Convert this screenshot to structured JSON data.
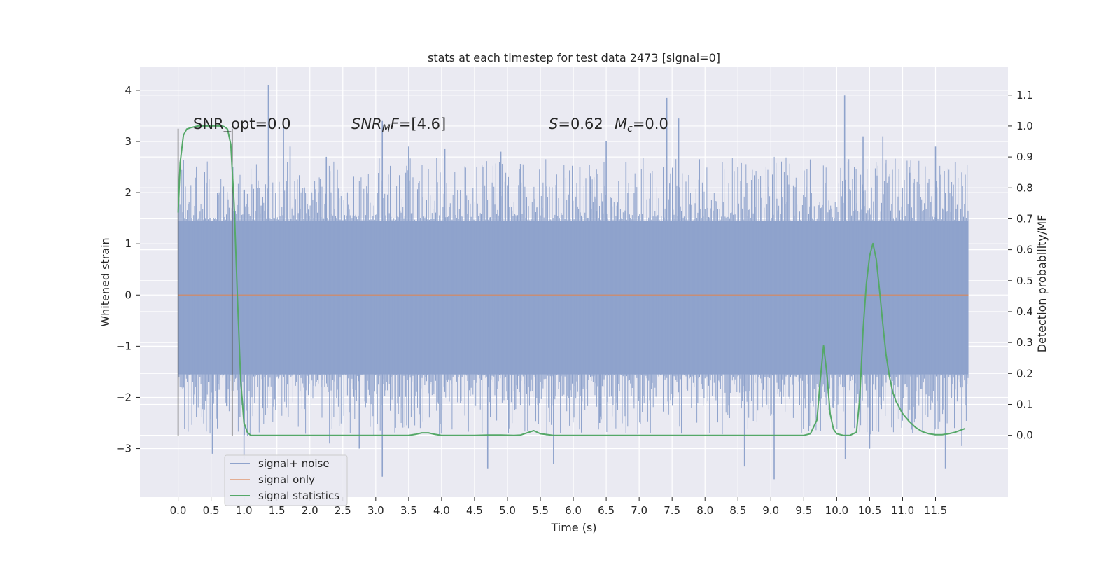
{
  "chart_data": {
    "type": "line",
    "title": "stats at each timestep for test data 2473 [signal=0]",
    "xlabel": "Time (s)",
    "ylabel": "Whitened strain",
    "y2label": "Detection probability/MF",
    "xlim": [
      -0.58,
      12.6
    ],
    "ylim": [
      -3.95,
      4.45
    ],
    "y2lim": [
      -0.2,
      1.19
    ],
    "x_ticks": [
      0.0,
      0.5,
      1.0,
      1.5,
      2.0,
      2.5,
      3.0,
      3.5,
      4.0,
      4.5,
      5.0,
      5.5,
      6.0,
      6.5,
      7.0,
      7.5,
      8.0,
      8.5,
      9.0,
      9.5,
      10.0,
      10.5,
      11.0,
      11.5
    ],
    "x_tick_labels": [
      "0.0",
      "0.5",
      "1.0",
      "1.5",
      "2.0",
      "2.5",
      "3.0",
      "3.5",
      "4.0",
      "4.5",
      "5.0",
      "5.5",
      "6.0",
      "6.5",
      "7.0",
      "7.5",
      "8.0",
      "8.5",
      "9.0",
      "9.5",
      "10.0",
      "10.5",
      "11.0",
      "11.5"
    ],
    "y_ticks": [
      -3,
      -2,
      -1,
      0,
      1,
      2,
      3,
      4
    ],
    "y_tick_labels": [
      "−3",
      "−2",
      "−1",
      "0",
      "1",
      "2",
      "3",
      "4"
    ],
    "y2_ticks": [
      0.0,
      0.1,
      0.2,
      0.3,
      0.4,
      0.5,
      0.6,
      0.7,
      0.8,
      0.9,
      1.0,
      1.1
    ],
    "y2_tick_labels": [
      "0.0",
      "0.1",
      "0.2",
      "0.3",
      "0.4",
      "0.5",
      "0.6",
      "0.7",
      "0.8",
      "0.9",
      "1.0",
      "1.1"
    ],
    "grid": true,
    "legend_position": "lower-left",
    "annotations": {
      "snr_opt": "SNR_opt=0.0",
      "snr_mf_main": "SNR",
      "snr_mf_sub": "M",
      "snr_mf_rest": "F=[4.6]",
      "s_main": "S",
      "s_rest": "=0.62",
      "mc_main": "M",
      "mc_sub": "c",
      "mc_rest": "=0.0"
    },
    "series": [
      {
        "name": "signal+ noise",
        "color": "#8fa3cc",
        "axis": "left",
        "x_range": [
          0.0,
          12.0
        ],
        "core_band": [
          -1.55,
          1.45
        ],
        "peaks_up": [
          [
            0.4,
            2.4
          ],
          [
            0.83,
            2.5
          ],
          [
            1.37,
            4.1
          ],
          [
            1.6,
            3.3
          ],
          [
            1.7,
            2.9
          ],
          [
            2.25,
            2.7
          ],
          [
            3.1,
            3.4
          ],
          [
            3.5,
            2.9
          ],
          [
            4.05,
            2.85
          ],
          [
            4.9,
            2.8
          ],
          [
            5.2,
            2.5
          ],
          [
            6.1,
            2.5
          ],
          [
            6.35,
            2.45
          ],
          [
            6.5,
            3.0
          ],
          [
            6.8,
            2.6
          ],
          [
            7.42,
            3.85
          ],
          [
            7.6,
            3.45
          ],
          [
            8.5,
            2.5
          ],
          [
            9.6,
            2.65
          ],
          [
            10.12,
            3.9
          ],
          [
            10.4,
            3.1
          ],
          [
            10.7,
            3.1
          ],
          [
            11.1,
            2.5
          ],
          [
            11.5,
            2.9
          ],
          [
            11.8,
            2.6
          ]
        ],
        "peaks_down": [
          [
            0.52,
            -3.1
          ],
          [
            1.0,
            -3.2
          ],
          [
            2.3,
            -2.9
          ],
          [
            2.75,
            -3.0
          ],
          [
            3.1,
            -3.55
          ],
          [
            3.5,
            -2.6
          ],
          [
            4.7,
            -3.4
          ],
          [
            5.7,
            -3.3
          ],
          [
            6.4,
            -2.5
          ],
          [
            8.6,
            -3.35
          ],
          [
            9.05,
            -3.6
          ],
          [
            10.13,
            -3.2
          ],
          [
            10.5,
            -3.0
          ],
          [
            11.65,
            -3.4
          ],
          [
            11.9,
            -2.95
          ]
        ]
      },
      {
        "name": "signal only",
        "color": "#dd8452",
        "axis": "left",
        "x": [
          0.0,
          12.0
        ],
        "values": [
          0.0,
          0.0
        ]
      },
      {
        "name": "signal statistics",
        "color": "#55a868",
        "axis": "right",
        "x": [
          0.0,
          0.03,
          0.08,
          0.13,
          0.2,
          0.3,
          0.4,
          0.5,
          0.6,
          0.66,
          0.7,
          0.75,
          0.8,
          0.85,
          0.9,
          0.95,
          1.0,
          1.05,
          1.1,
          1.2,
          1.5,
          2.0,
          2.5,
          3.0,
          3.5,
          3.6,
          3.7,
          3.8,
          3.9,
          4.0,
          4.5,
          4.7,
          4.9,
          5.1,
          5.2,
          5.3,
          5.4,
          5.5,
          5.7,
          6.0,
          7.0,
          8.0,
          9.0,
          9.5,
          9.6,
          9.7,
          9.75,
          9.8,
          9.85,
          9.9,
          9.95,
          10.0,
          10.1,
          10.2,
          10.3,
          10.35,
          10.4,
          10.45,
          10.5,
          10.55,
          10.6,
          10.65,
          10.7,
          10.75,
          10.8,
          10.85,
          10.9,
          10.95,
          11.0,
          11.1,
          11.2,
          11.3,
          11.4,
          11.5,
          11.6,
          11.7,
          11.8,
          11.9,
          11.95
        ],
        "values": [
          0.72,
          0.88,
          0.97,
          0.99,
          0.995,
          1.0,
          1.0,
          1.0,
          1.0,
          1.0,
          0.998,
          0.99,
          0.94,
          0.75,
          0.45,
          0.18,
          0.04,
          0.01,
          0.0,
          0.0,
          0.0,
          0.0,
          0.0,
          0.0,
          0.0,
          0.003,
          0.008,
          0.008,
          0.003,
          0.0,
          0.0,
          0.001,
          0.001,
          0.0,
          0.001,
          0.008,
          0.015,
          0.005,
          0.0,
          0.0,
          0.0,
          0.0,
          0.0,
          0.0,
          0.005,
          0.05,
          0.18,
          0.29,
          0.2,
          0.07,
          0.02,
          0.005,
          0.0,
          0.0,
          0.01,
          0.12,
          0.34,
          0.49,
          0.58,
          0.62,
          0.57,
          0.47,
          0.36,
          0.26,
          0.19,
          0.14,
          0.11,
          0.09,
          0.07,
          0.045,
          0.025,
          0.012,
          0.005,
          0.002,
          0.002,
          0.005,
          0.01,
          0.018,
          0.022
        ]
      },
      {
        "name": "markers",
        "color": "#555555",
        "axis": "left",
        "x": [
          0.0,
          0.82
        ],
        "span": [
          -2.75,
          3.25
        ]
      }
    ]
  }
}
